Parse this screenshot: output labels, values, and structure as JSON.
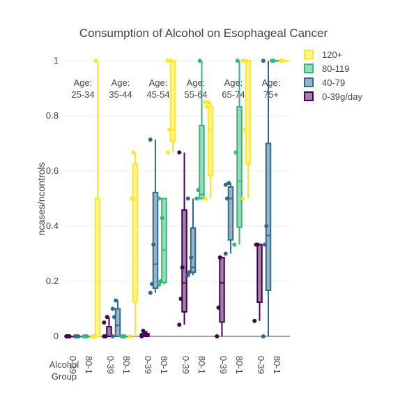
{
  "chart_data": {
    "type": "box",
    "title": "Consumption of Alcohol on Esophageal Cancer",
    "xlabel": "Alcohol Group",
    "ylabel": "ncases/ncontrols",
    "ylim": [
      0,
      1
    ],
    "y_ticks": [
      0,
      0.2,
      0.4,
      0.6,
      0.8,
      1
    ],
    "y_tick_labels": [
      "0",
      "0.2",
      "0.4",
      "0.6",
      "0.8",
      "1"
    ],
    "grid": true,
    "legend_position": "top-right",
    "x_tick_labels": [
      "0-39",
      "80-1",
      "0-39",
      "80-1",
      "0-39",
      "80-1",
      "0-39",
      "80-1",
      "0-39",
      "80-1",
      "0-39",
      "80-1"
    ],
    "series": [
      {
        "name": "120+",
        "color": "#fde725"
      },
      {
        "name": "80-119",
        "color": "#35b779"
      },
      {
        "name": "40-79",
        "color": "#31688e"
      },
      {
        "name": "0-39g/day",
        "color": "#440154"
      }
    ],
    "panels": [
      {
        "label": "Age:\n25-34",
        "boxes": [
          {
            "series": "0-39g/day",
            "q1": 0,
            "median": 0,
            "q3": 0,
            "low": 0,
            "high": 0,
            "points": [
              0,
              0,
              0,
              0
            ]
          },
          {
            "series": "40-79",
            "q1": 0,
            "median": 0,
            "q3": 0,
            "low": 0,
            "high": 0,
            "points": [
              0,
              0,
              0
            ]
          },
          {
            "series": "80-119",
            "q1": 0,
            "median": 0,
            "q3": 0,
            "low": 0,
            "high": 0,
            "points": [
              0,
              0,
              0
            ]
          },
          {
            "series": "120+",
            "q1": 0,
            "median": 0,
            "q3": 0.5,
            "low": 0,
            "high": 1,
            "points": [
              0,
              0,
              1
            ]
          }
        ]
      },
      {
        "label": "Age:\n35-44",
        "boxes": [
          {
            "series": "0-39g/day",
            "q1": 0,
            "median": 0,
            "q3": 0.035,
            "low": 0,
            "high": 0.07,
            "points": [
              0,
              0,
              0.07,
              0.05
            ]
          },
          {
            "series": "40-79",
            "q1": 0,
            "median": 0.04,
            "q3": 0.1,
            "low": 0,
            "high": 0.13,
            "points": [
              0,
              0.07,
              0.13,
              0.1
            ]
          },
          {
            "series": "80-119",
            "q1": 0,
            "median": 0,
            "q3": 0,
            "low": 0,
            "high": 0,
            "points": [
              0,
              0,
              0
            ]
          },
          {
            "series": "120+",
            "q1": 0.125,
            "median": 0.5,
            "q3": 0.625,
            "low": 0,
            "high": 0.667,
            "points": [
              0,
              0.5,
              0.667
            ]
          }
        ]
      },
      {
        "label": "Age:\n45-54",
        "boxes": [
          {
            "series": "0-39g/day",
            "q1": 0,
            "median": 0.005,
            "q3": 0.01,
            "low": 0,
            "high": 0.02,
            "points": [
              0,
              0.02,
              0.01,
              0.005
            ]
          },
          {
            "series": "40-79",
            "q1": 0.175,
            "median": 0.262,
            "q3": 0.522,
            "low": 0.158,
            "high": 0.714,
            "points": [
              0.158,
              0.19,
              0.333,
              0.714
            ]
          },
          {
            "series": "80-119",
            "q1": 0.195,
            "median": 0.313,
            "q3": 0.5,
            "low": 0.188,
            "high": 0.5,
            "points": [
              0.188,
              0.2,
              0.429,
              0.5
            ]
          },
          {
            "series": "120+",
            "q1": 0.708,
            "median": 0.75,
            "q3": 1,
            "low": 0.667,
            "high": 1,
            "points": [
              0.667,
              0.75,
              1,
              1
            ]
          }
        ]
      },
      {
        "label": "Age:\n55-64",
        "boxes": [
          {
            "series": "0-39g/day",
            "q1": 0.089,
            "median": 0.194,
            "q3": 0.458,
            "low": 0.042,
            "high": 0.667,
            "points": [
              0.042,
              0.136,
              0.25,
              0.667
            ]
          },
          {
            "series": "40-79",
            "q1": 0.233,
            "median": 0.25,
            "q3": 0.393,
            "low": 0.222,
            "high": 0.5,
            "points": [
              0.222,
              0.233,
              0.286,
              0.5
            ]
          },
          {
            "series": "80-119",
            "q1": 0.5,
            "median": 0.515,
            "q3": 0.765,
            "low": 0.5,
            "high": 1,
            "points": [
              0.5,
              0.531,
              1,
              0.5
            ]
          },
          {
            "series": "120+",
            "q1": 0.583,
            "median": 0.75,
            "q3": 0.833,
            "low": 0.5,
            "high": 0.85,
            "points": [
              0.5,
              0.833,
              0.85,
              0.85
            ]
          }
        ]
      },
      {
        "label": "Age:\n65-74",
        "boxes": [
          {
            "series": "0-39g/day",
            "q1": 0.052,
            "median": 0.194,
            "q3": 0.286,
            "low": 0,
            "high": 0.286,
            "points": [
              0,
              0.104,
              0.286
            ]
          },
          {
            "series": "40-79",
            "q1": 0.35,
            "median": 0.5,
            "q3": 0.542,
            "low": 0.3,
            "high": 0.556,
            "points": [
              0.3,
              0.5,
              0.556,
              0.55
            ]
          },
          {
            "series": "80-119",
            "q1": 0.396,
            "median": 0.563,
            "q3": 0.833,
            "low": 0.333,
            "high": 1,
            "points": [
              0.333,
              0.667,
              1
            ]
          },
          {
            "series": "120+",
            "q1": 0.625,
            "median": 1,
            "q3": 1,
            "low": 0.5,
            "high": 1,
            "points": [
              0.5,
              0.75,
              1,
              1
            ]
          }
        ]
      },
      {
        "label": "Age:\n75+",
        "boxes": [
          {
            "series": "0-39g/day",
            "q1": 0.124,
            "median": 0.333,
            "q3": 0.333,
            "low": 0.056,
            "high": 0.333,
            "points": [
              0.056,
              0.333,
              0.333
            ]
          },
          {
            "series": "40-79",
            "q1": 0.167,
            "median": 0.366,
            "q3": 0.7,
            "low": 0,
            "high": 1,
            "points": [
              0,
              0.333,
              0.4,
              1
            ]
          },
          {
            "series": "80-119",
            "q1": 1,
            "median": 1,
            "q3": 1,
            "low": 1,
            "high": 1,
            "points": [
              1,
              1
            ]
          },
          {
            "series": "120+",
            "q1": 1,
            "median": 1,
            "q3": 1,
            "low": 1,
            "high": 1,
            "points": [
              1,
              1
            ]
          }
        ]
      }
    ]
  }
}
